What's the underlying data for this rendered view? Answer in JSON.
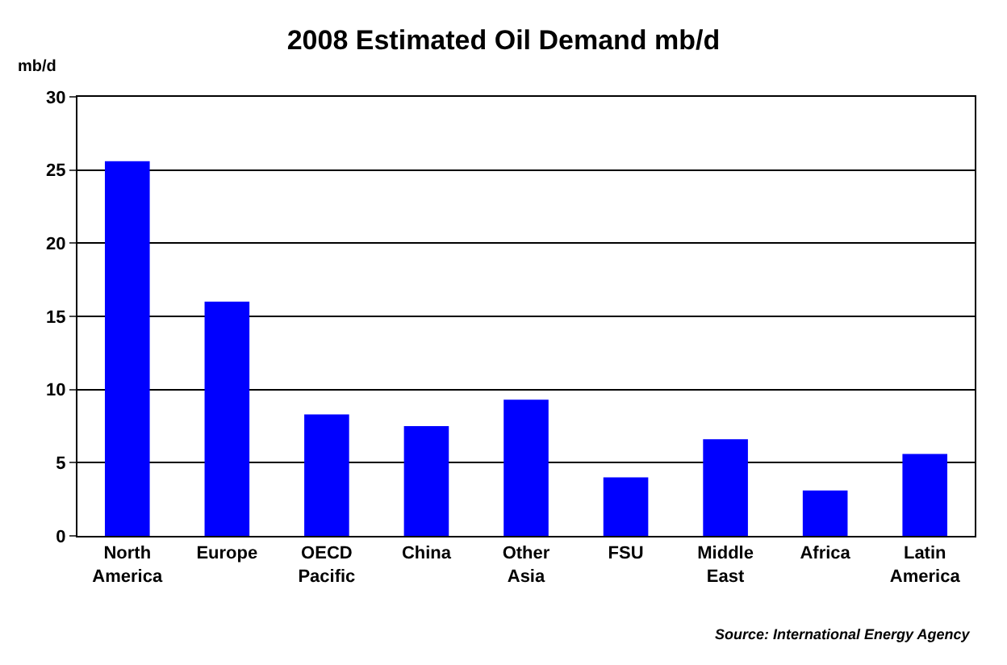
{
  "chart_data": {
    "type": "bar",
    "title": "2008 Estimated Oil Demand mb/d",
    "ylabel": "mb/d",
    "categories": [
      "North America",
      "Europe",
      "OECD Pacific",
      "China",
      "Other Asia",
      "FSU",
      "Middle East",
      "Africa",
      "Latin America"
    ],
    "values": [
      25.6,
      16.0,
      8.3,
      7.5,
      9.3,
      4.0,
      6.6,
      3.1,
      5.6
    ],
    "color": "#0000ff",
    "ylim": [
      0,
      30
    ],
    "yticks": [
      0,
      5,
      10,
      15,
      20,
      25,
      30
    ],
    "grid": "y",
    "annotations": [
      "Source: International Energy Agency"
    ]
  }
}
